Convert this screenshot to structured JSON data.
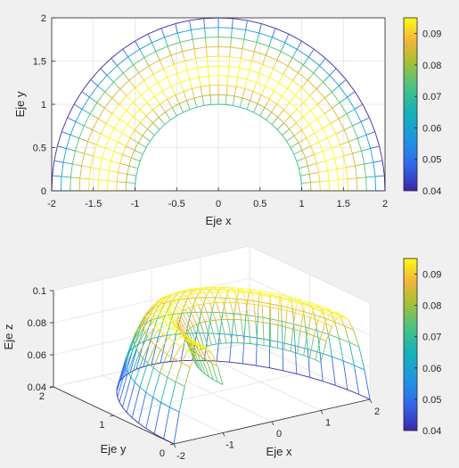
{
  "chart_data": [
    {
      "type": "mesh",
      "view": "2D top view",
      "title": "",
      "xlabel": "Eje x",
      "ylabel": "Eje y",
      "xlim": [
        -2,
        2
      ],
      "ylim": [
        0,
        2
      ],
      "xticks": [
        "-2",
        "-1.5",
        "-1",
        "-0.5",
        "0",
        "0.5",
        "1",
        "1.5",
        "2"
      ],
      "yticks": [
        "0",
        "0.5",
        "1",
        "1.5",
        "2"
      ],
      "grid": true,
      "domain": {
        "r_min": 1,
        "r_max": 2,
        "theta_min_deg": 0,
        "theta_max_deg": 180,
        "radial_lines": 10,
        "angular_lines": 37
      },
      "colorbar": {
        "range": [
          0.04,
          0.095
        ],
        "ticks": [
          "0.04",
          "0.05",
          "0.06",
          "0.07",
          "0.08",
          "0.09"
        ],
        "colormap": "parula"
      },
      "value_at_radius": {
        "r": [
          1,
          1.5,
          2
        ],
        "z": [
          0.07,
          0.095,
          0.04
        ]
      }
    },
    {
      "type": "mesh",
      "view": "3D",
      "title": "",
      "xlabel": "Eje x",
      "ylabel": "Eje y",
      "zlabel": "Eje z",
      "xlim": [
        -2,
        2
      ],
      "ylim": [
        0,
        2
      ],
      "zlim": [
        0.04,
        0.1
      ],
      "xticks": [
        "-2",
        "-1",
        "0",
        "1",
        "2"
      ],
      "yticks": [
        "0",
        "1",
        "2"
      ],
      "zticks": [
        "0.04",
        "0.06",
        "0.08",
        "0.1"
      ],
      "grid": true,
      "colorbar": {
        "range": [
          0.04,
          0.095
        ],
        "ticks": [
          "0.04",
          "0.05",
          "0.06",
          "0.07",
          "0.08",
          "0.09"
        ],
        "colormap": "parula"
      },
      "value_at_radius": {
        "r": [
          1,
          1.5,
          2
        ],
        "z": [
          0.07,
          0.095,
          0.04
        ]
      }
    }
  ]
}
